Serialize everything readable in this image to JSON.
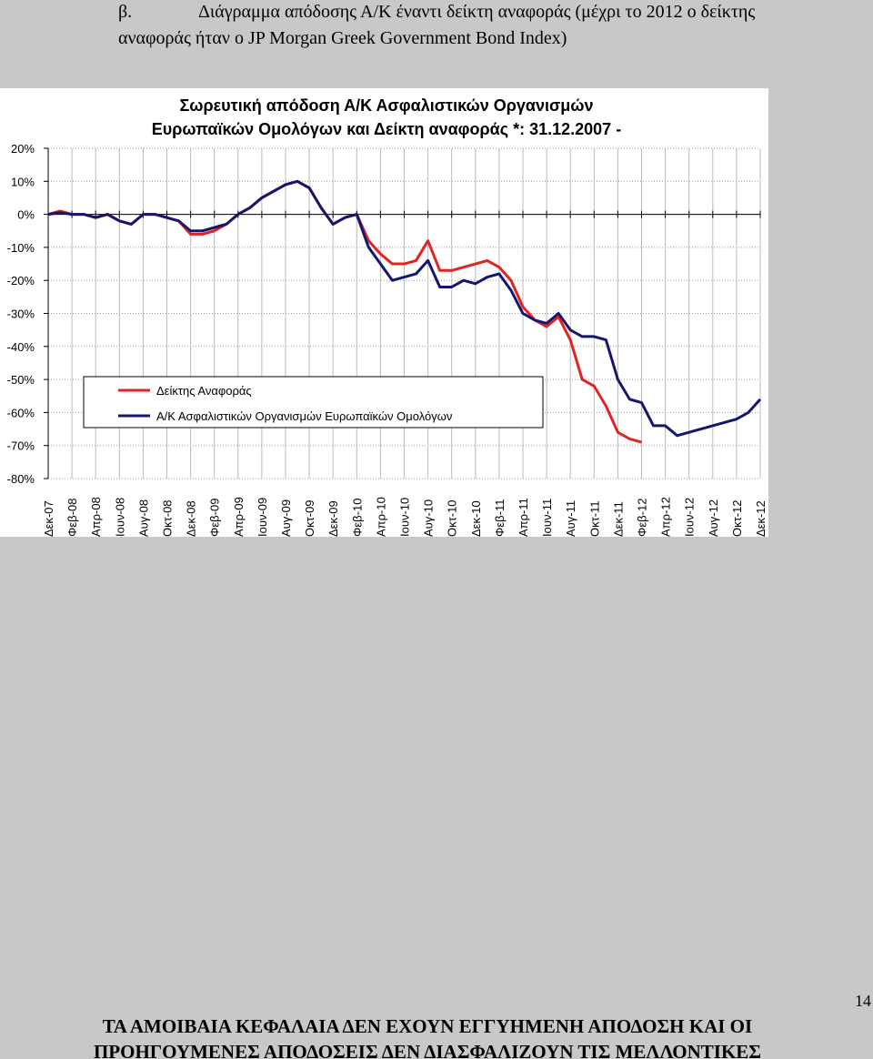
{
  "heading": {
    "marker": "β.",
    "lines": [
      "Διάγραμμα απόδοσης Α/Κ έναντι δείκτη αναφοράς (μέχρι το 2012 ο δείκτης",
      "αναφοράς ήταν ο JP Morgan Greek Government Bond Index)"
    ]
  },
  "chart_data": {
    "type": "line",
    "title": [
      "Σωρευτική απόδοση Α/Κ Ασφαλιστικών Οργανισμών",
      "Ευρωπαϊκών Ομολόγων και Δείκτη αναφοράς *: 31.12.2007 -"
    ],
    "x": [
      0,
      1,
      2,
      3,
      4,
      5,
      6,
      7,
      8,
      9,
      10,
      11,
      12,
      13,
      14,
      15,
      16,
      17,
      18,
      19,
      20,
      21,
      22,
      23,
      24,
      25,
      26,
      27,
      28,
      29,
      30,
      31,
      32,
      33,
      34,
      35,
      36,
      37,
      38,
      39,
      40,
      41,
      42,
      43,
      44,
      45,
      46,
      47,
      48,
      49,
      50,
      51,
      52,
      53,
      54,
      55,
      56,
      57,
      58,
      59,
      60
    ],
    "series": [
      {
        "name": "Δείκτης Αναφοράς",
        "color": "#e32222",
        "values": [
          0,
          1,
          0,
          0,
          -1,
          0,
          -2,
          -3,
          0,
          0,
          -1,
          -2,
          -6,
          -6,
          -5,
          -3,
          0,
          2,
          5,
          7,
          9,
          10,
          8,
          2,
          -3,
          -1,
          0,
          -8,
          -12,
          -15,
          -15,
          -14,
          -8,
          -17,
          -17,
          -16,
          -15,
          -14,
          -16,
          -20,
          -28,
          -32,
          -34,
          -31,
          -38,
          -50,
          -52,
          -58,
          -66,
          -68,
          -69,
          null,
          null,
          null,
          null,
          null,
          null,
          null,
          null,
          null,
          null
        ]
      },
      {
        "name": "Α/Κ Ασφαλιστικών Οργανισμών Ευρωπαϊκών Ομολόγων",
        "color": "#16166e",
        "values": [
          0,
          0.5,
          0,
          0,
          -1,
          0,
          -2,
          -3,
          0,
          0,
          -1,
          -2,
          -5,
          -5,
          -4,
          -3,
          0,
          2,
          5,
          7,
          9,
          10,
          8,
          2,
          -3,
          -1,
          0,
          -10,
          -15,
          -20,
          -19,
          -18,
          -14,
          -22,
          -22,
          -20,
          -21,
          -19,
          -18,
          -23,
          -30,
          -32,
          -33,
          -30,
          -35,
          -37,
          -37,
          -38,
          -50,
          -56,
          -57,
          -64,
          -64,
          -67,
          -66,
          -65,
          -64,
          -63,
          -62,
          -60,
          -56
        ]
      }
    ],
    "xlim": [
      0,
      60
    ],
    "xticks": [
      {
        "value": 0,
        "label": "Δεκ-07"
      },
      {
        "value": 2,
        "label": "Φεβ-08"
      },
      {
        "value": 4,
        "label": "Απρ-08"
      },
      {
        "value": 6,
        "label": "Ιουν-08"
      },
      {
        "value": 8,
        "label": "Αυγ-08"
      },
      {
        "value": 10,
        "label": "Οκτ-08"
      },
      {
        "value": 12,
        "label": "Δεκ-08"
      },
      {
        "value": 14,
        "label": "Φεβ-09"
      },
      {
        "value": 16,
        "label": "Απρ-09"
      },
      {
        "value": 18,
        "label": "Ιουν-09"
      },
      {
        "value": 20,
        "label": "Αυγ-09"
      },
      {
        "value": 22,
        "label": "Οκτ-09"
      },
      {
        "value": 24,
        "label": "Δεκ-09"
      },
      {
        "value": 26,
        "label": "Φεβ-10"
      },
      {
        "value": 28,
        "label": "Απρ-10"
      },
      {
        "value": 30,
        "label": "Ιουν-10"
      },
      {
        "value": 32,
        "label": "Αυγ-10"
      },
      {
        "value": 34,
        "label": "Οκτ-10"
      },
      {
        "value": 36,
        "label": "Δεκ-10"
      },
      {
        "value": 38,
        "label": "Φεβ-11"
      },
      {
        "value": 40,
        "label": "Απρ-11"
      },
      {
        "value": 42,
        "label": "Ιουν-11"
      },
      {
        "value": 44,
        "label": "Αυγ-11"
      },
      {
        "value": 46,
        "label": "Οκτ-11"
      },
      {
        "value": 48,
        "label": "Δεκ-11"
      },
      {
        "value": 50,
        "label": "Φεβ-12"
      },
      {
        "value": 52,
        "label": "Απρ-12"
      },
      {
        "value": 54,
        "label": "Ιουν-12"
      },
      {
        "value": 56,
        "label": "Αυγ-12"
      },
      {
        "value": 58,
        "label": "Οκτ-12"
      },
      {
        "value": 60,
        "label": "Δεκ-12"
      }
    ],
    "ylim": [
      -80,
      20
    ],
    "yticks": [
      {
        "value": -80,
        "label": "-80%"
      },
      {
        "value": -70,
        "label": "-70%"
      },
      {
        "value": -60,
        "label": "-60%"
      },
      {
        "value": -50,
        "label": "-50%"
      },
      {
        "value": -40,
        "label": "-40%"
      },
      {
        "value": -30,
        "label": "-30%"
      },
      {
        "value": -20,
        "label": "-20%"
      },
      {
        "value": -10,
        "label": "-10%"
      },
      {
        "value": 0,
        "label": "0%"
      },
      {
        "value": 10,
        "label": "10%"
      },
      {
        "value": 20,
        "label": "20%"
      }
    ],
    "grid": true
  },
  "page_number": "14",
  "footer": [
    "ΤΑ ΑΜΟΙΒΑΙΑ ΚΕΦΑΛΑΙΑ ΔΕΝ ΕΧΟΥΝ ΕΓΓΥΗΜΕΝΗ ΑΠΟΔΟΣΗ ΚΑΙ ΟΙ",
    "ΠΡΟΗΓΟΥΜΕΝΕΣ ΑΠΟΔΟΣΕΙΣ ΔΕΝ ΔΙΑΣΦΑΛΙΖΟΥΝ ΤΙΣ ΜΕΛΛΟΝΤΙΚΕΣ"
  ]
}
